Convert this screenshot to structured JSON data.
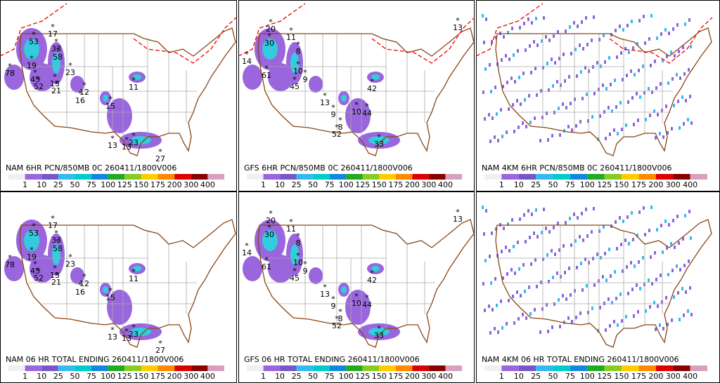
{
  "panels": [
    {
      "title": "NAM 6HR PCN/850MB 0C 260411/1800V006",
      "stations": [
        17,
        53,
        33,
        58,
        78,
        19,
        45,
        52,
        13,
        21,
        23,
        12,
        16,
        15,
        11,
        13,
        13,
        23,
        27
      ]
    },
    {
      "title": "GFS 6HR PCN/850MB 0C 260411/1800V006",
      "stations": [
        20,
        30,
        11,
        8,
        14,
        61,
        10,
        9,
        45,
        13,
        9,
        10,
        44,
        42,
        8,
        52,
        33,
        13
      ]
    },
    {
      "title": "NAM 4KM 6HR PCN/850MB 0C 260411/1800V006"
    },
    {
      "title": "NAM 06 HR TOTAL ENDING 260411/1800V006",
      "stations": [
        17,
        53,
        33,
        58,
        78,
        19,
        45,
        52,
        13,
        21,
        23,
        12,
        16,
        15,
        11,
        13,
        13,
        23,
        27
      ]
    },
    {
      "title": "GFS 06 HR TOTAL ENDING 260411/1800V006",
      "stations": [
        20,
        30,
        11,
        8,
        14,
        61,
        10,
        9,
        45,
        13,
        9,
        10,
        44,
        42,
        8,
        52,
        33,
        13
      ]
    },
    {
      "title": "NAM 4KM 06 HR TOTAL ENDING 260411/1800V006"
    }
  ],
  "legend": {
    "labels": [
      1,
      10,
      25,
      50,
      75,
      100,
      125,
      150,
      175,
      200,
      300,
      400
    ],
    "colors": [
      "#f0f0f0",
      "#9966dd",
      "#7755cc",
      "#33bbee",
      "#00cccc",
      "#1188dd",
      "#22aa22",
      "#88cc22",
      "#ffcc00",
      "#ff8800",
      "#dd0000",
      "#880000",
      "#d8a0c0"
    ]
  }
}
